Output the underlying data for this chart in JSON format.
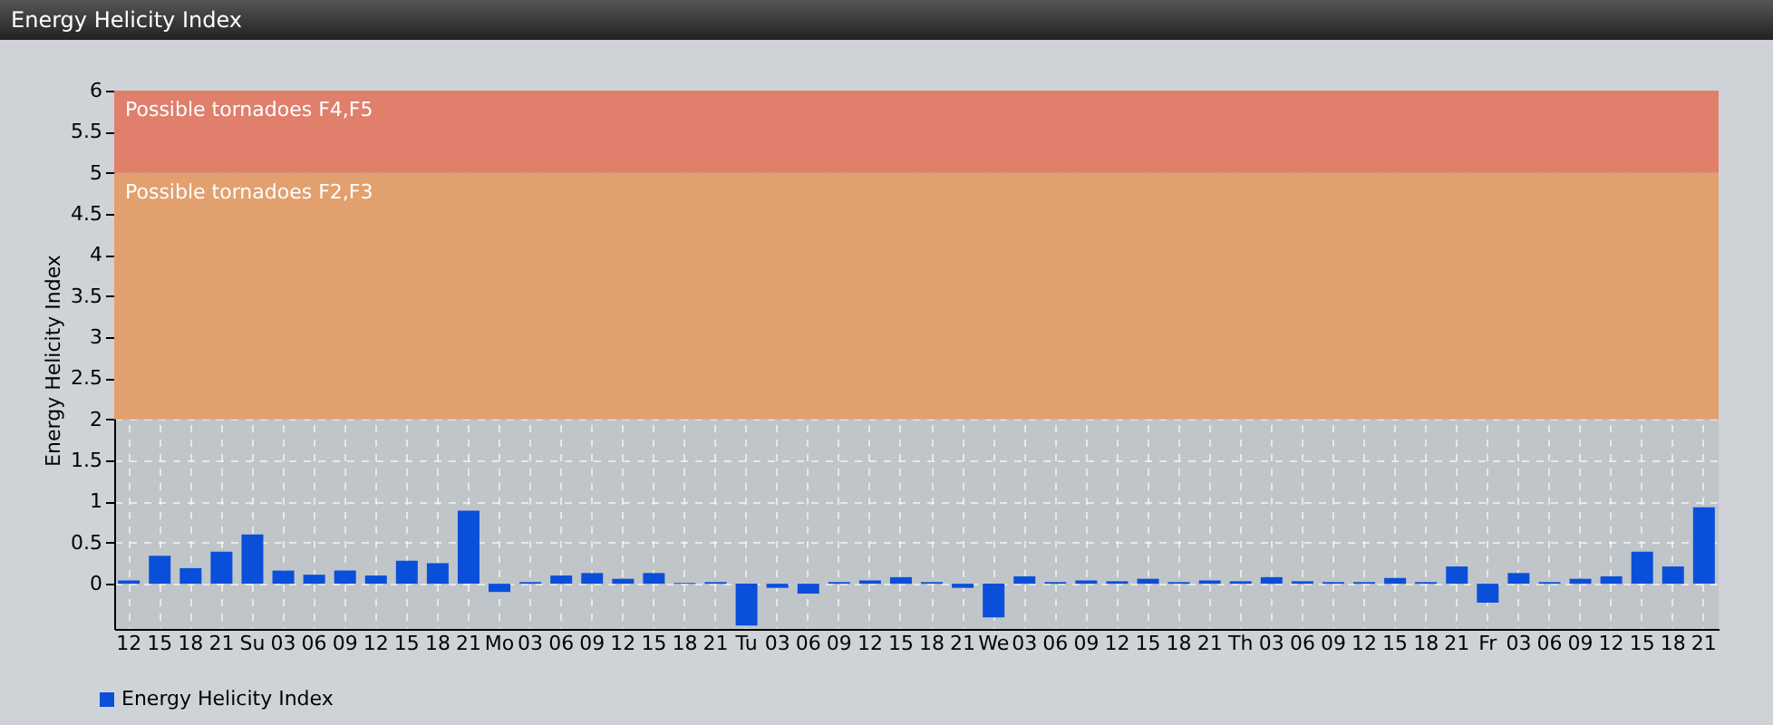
{
  "chart_data": {
    "type": "bar",
    "title": "Energy Helicity Index",
    "ylabel": "Energy Helicity Index",
    "categories": [
      "12",
      "15",
      "18",
      "21",
      "Su",
      "03",
      "06",
      "09",
      "12",
      "15",
      "18",
      "21",
      "Mo",
      "03",
      "06",
      "09",
      "12",
      "15",
      "18",
      "21",
      "Tu",
      "03",
      "06",
      "09",
      "12",
      "15",
      "18",
      "21",
      "We",
      "03",
      "06",
      "09",
      "12",
      "15",
      "18",
      "21",
      "Th",
      "03",
      "06",
      "09",
      "12",
      "15",
      "18",
      "21",
      "Fr",
      "03",
      "06",
      "09",
      "12",
      "15",
      "18",
      "21"
    ],
    "series": [
      {
        "name": "Energy Helicity Index",
        "color": "#0a4fd9",
        "values": [
          0.04,
          0.34,
          0.19,
          0.39,
          0.6,
          0.16,
          0.11,
          0.16,
          0.1,
          0.28,
          0.25,
          0.89,
          -0.1,
          0.02,
          0.1,
          0.13,
          0.06,
          0.13,
          0.01,
          0.02,
          -0.51,
          -0.05,
          -0.12,
          0.02,
          0.04,
          0.08,
          0.02,
          -0.05,
          -0.41,
          0.09,
          0.02,
          0.04,
          0.03,
          0.06,
          0.02,
          0.04,
          0.03,
          0.08,
          0.03,
          0.02,
          0.02,
          0.07,
          0.02,
          0.21,
          -0.23,
          0.13,
          0.02,
          0.06,
          0.09,
          0.39,
          0.21,
          0.93
        ]
      }
    ],
    "ylim": [
      -0.55,
      6
    ],
    "yticks": [
      0,
      0.5,
      1,
      1.5,
      2,
      2.5,
      3,
      3.5,
      4,
      4.5,
      5,
      5.5,
      6
    ],
    "bands": [
      {
        "axis": "y",
        "from": 2,
        "to": 5,
        "label": "Possible tornadoes F2,F3",
        "color": "#e2a06e"
      },
      {
        "axis": "y",
        "from": 5,
        "to": 6,
        "label": "Possible tornadoes F4,F5",
        "color": "#e07f6c"
      }
    ],
    "grid": true,
    "legend": "bottom left"
  }
}
